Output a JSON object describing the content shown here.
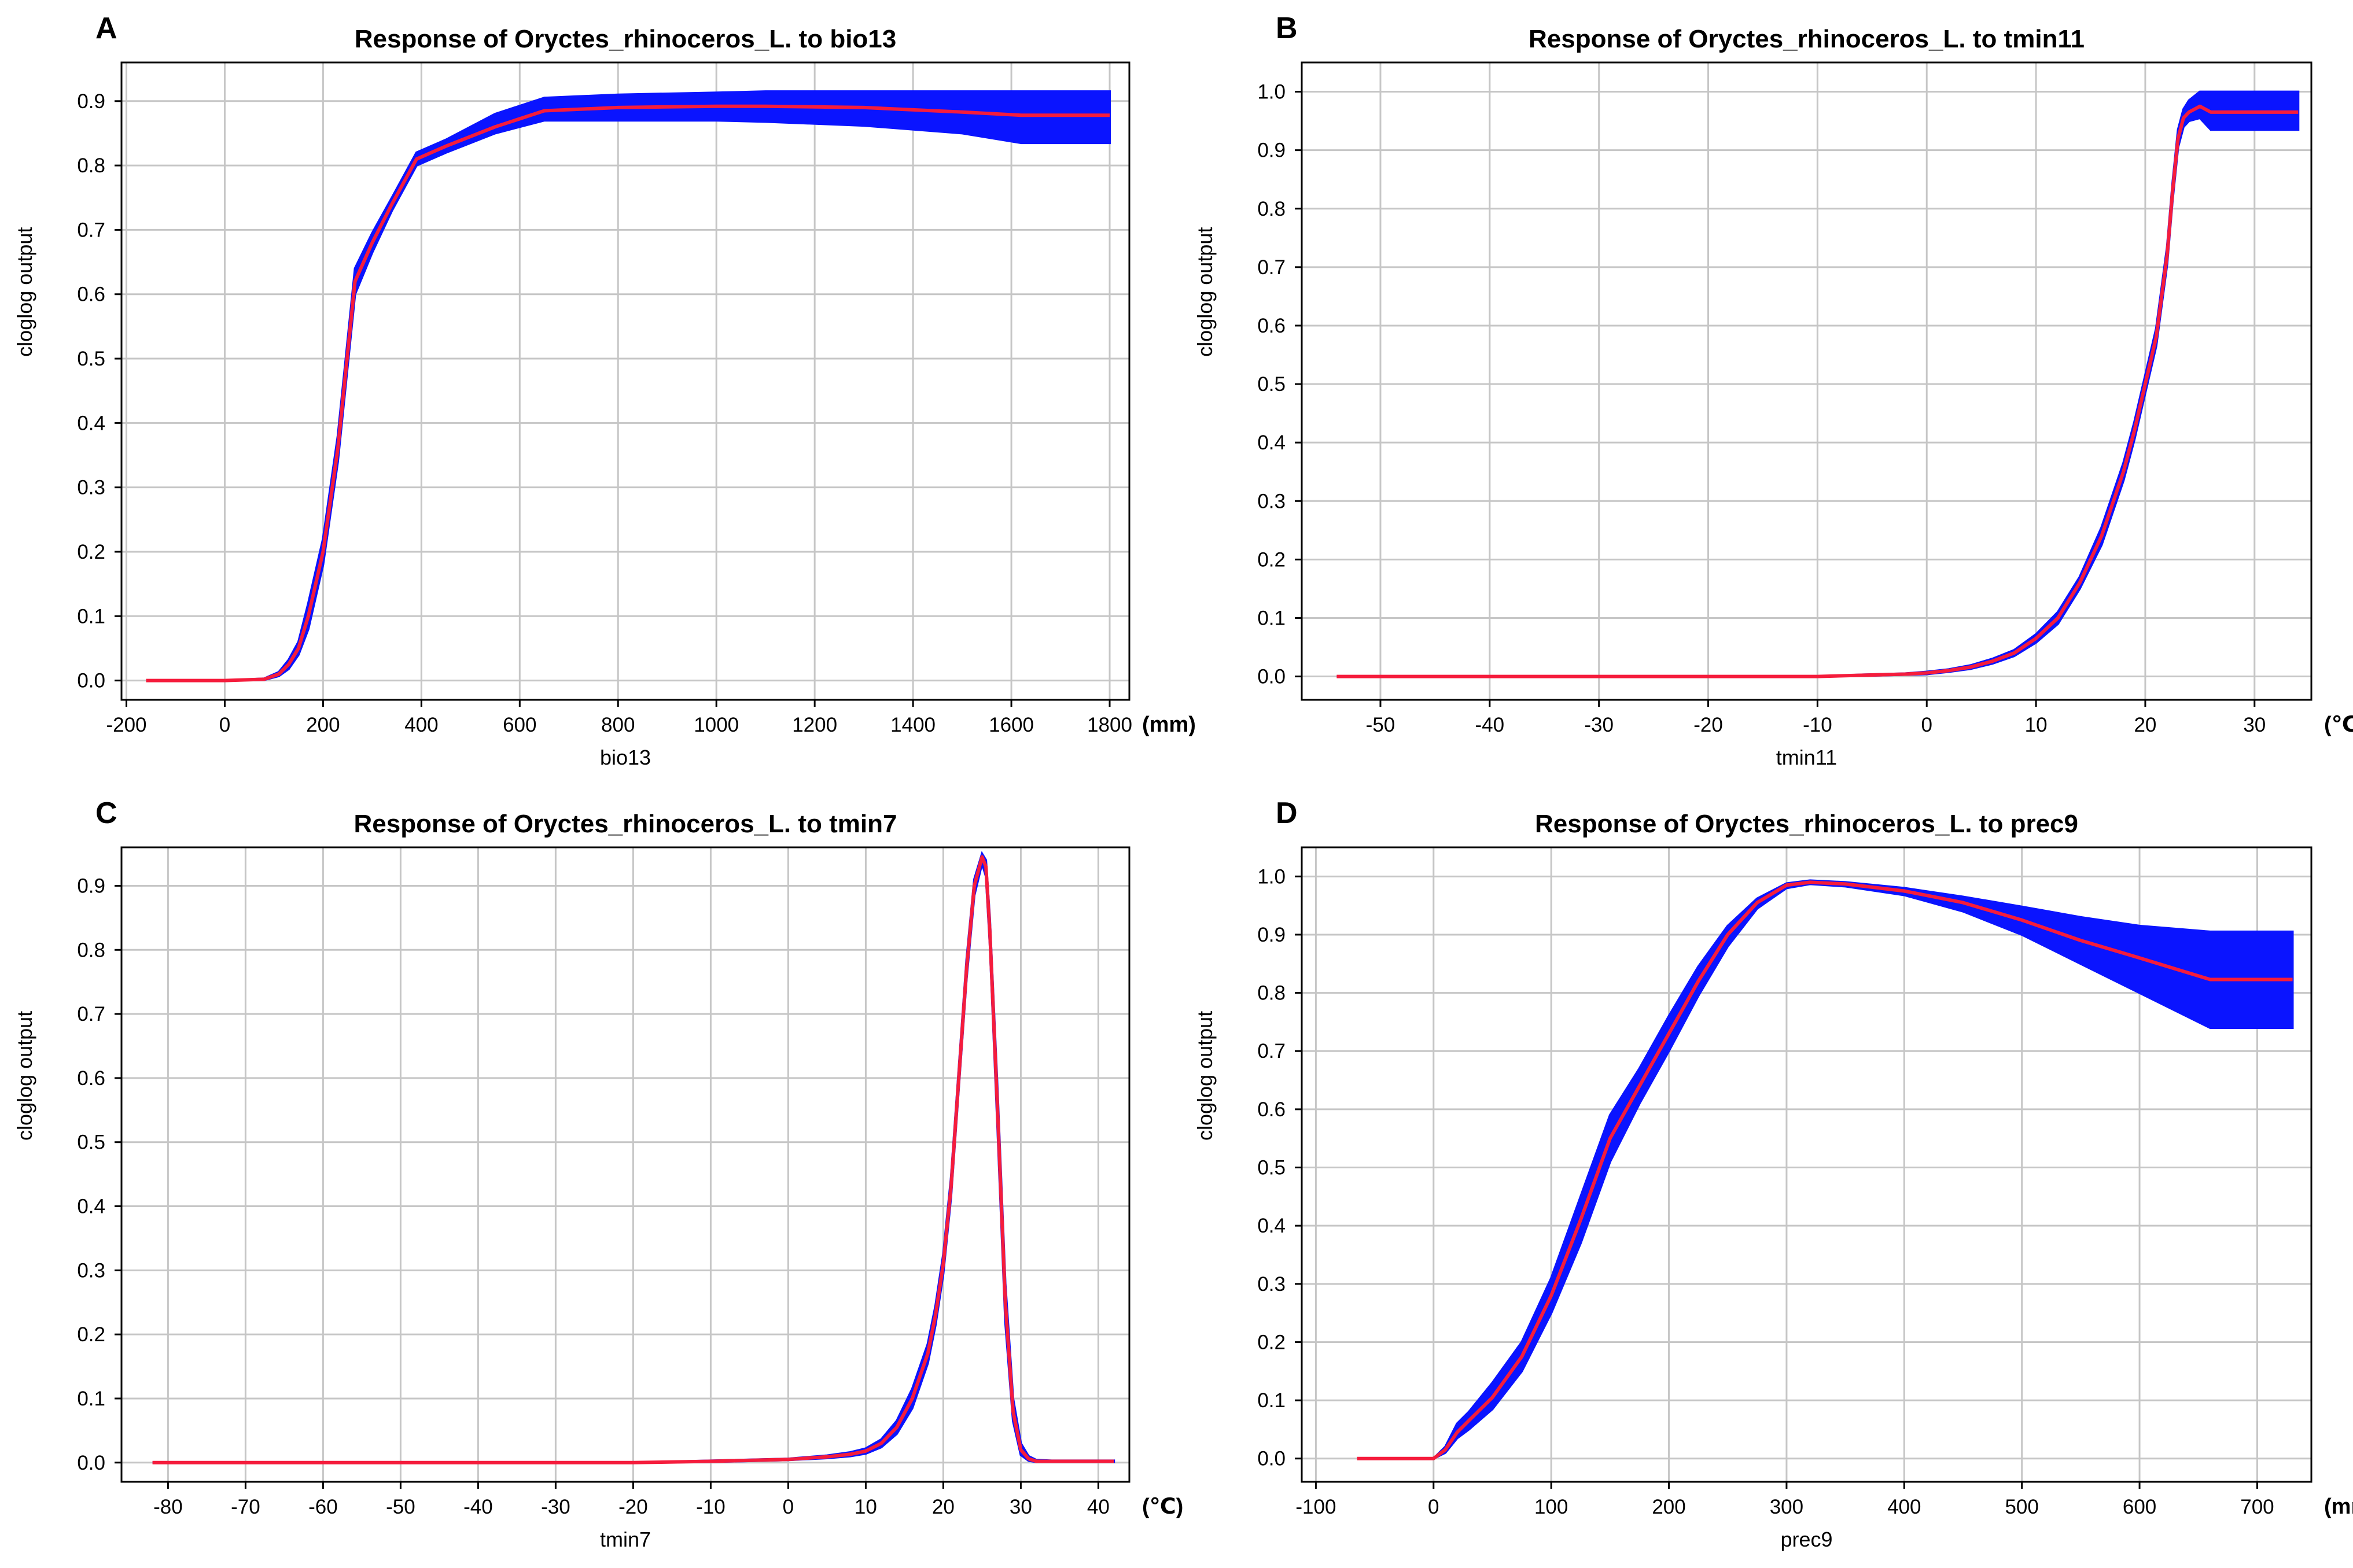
{
  "colors": {
    "band": "#0a14ff",
    "mean": "#f51c3c",
    "grid": "#c6c6c6"
  },
  "chart_data": [
    {
      "type": "area",
      "panel": "A",
      "title": "Response of Oryctes_rhinoceros_L. to bio13",
      "xlabel": "bio13",
      "ylabel": "cloglog output",
      "unit": "(mm)",
      "xlim": [
        -210,
        1840
      ],
      "ylim": [
        -0.03,
        0.96
      ],
      "xticks": [
        -200,
        0,
        200,
        400,
        600,
        800,
        1000,
        1200,
        1400,
        1600,
        1800
      ],
      "yticks": [
        0.0,
        0.1,
        0.2,
        0.3,
        0.4,
        0.5,
        0.6,
        0.7,
        0.8,
        0.9
      ],
      "ytick_decimals": 1,
      "series": [
        {
          "name": "mean",
          "x": [
            -160,
            0,
            80,
            110,
            130,
            150,
            170,
            200,
            230,
            265,
            300,
            340,
            390,
            450,
            550,
            650,
            800,
            1000,
            1100,
            1300,
            1500,
            1620,
            1800
          ],
          "values": [
            0.0,
            0.0,
            0.002,
            0.01,
            0.025,
            0.05,
            0.1,
            0.2,
            0.36,
            0.62,
            0.68,
            0.74,
            0.81,
            0.83,
            0.86,
            0.885,
            0.89,
            0.892,
            0.892,
            0.89,
            0.883,
            0.878,
            0.878
          ]
        },
        {
          "name": "upper",
          "x": [
            -160,
            0,
            80,
            110,
            130,
            150,
            170,
            200,
            230,
            265,
            300,
            340,
            390,
            450,
            550,
            650,
            800,
            1000,
            1100,
            1300,
            1500,
            1620,
            1800
          ],
          "values": [
            0.0,
            0.0,
            0.003,
            0.013,
            0.032,
            0.06,
            0.12,
            0.22,
            0.38,
            0.64,
            0.695,
            0.75,
            0.82,
            0.84,
            0.88,
            0.905,
            0.91,
            0.913,
            0.915,
            0.915,
            0.915,
            0.915,
            0.915
          ]
        },
        {
          "name": "lower",
          "x": [
            -160,
            0,
            80,
            110,
            130,
            150,
            170,
            200,
            230,
            265,
            300,
            340,
            390,
            450,
            550,
            650,
            800,
            1000,
            1100,
            1300,
            1500,
            1620,
            1800
          ],
          "values": [
            0.0,
            0.0,
            0.001,
            0.007,
            0.018,
            0.04,
            0.08,
            0.18,
            0.34,
            0.6,
            0.665,
            0.73,
            0.8,
            0.82,
            0.85,
            0.87,
            0.87,
            0.87,
            0.868,
            0.862,
            0.85,
            0.835,
            0.835
          ]
        }
      ]
    },
    {
      "type": "area",
      "panel": "B",
      "title": "Response of Oryctes_rhinoceros_L. to tmin11",
      "xlabel": "tmin11",
      "ylabel": "cloglog output",
      "unit": "(℃)",
      "xlim": [
        -57.2,
        35.2
      ],
      "ylim": [
        -0.04,
        1.05
      ],
      "xticks": [
        -50,
        -40,
        -30,
        -20,
        -10,
        0,
        10,
        20,
        30
      ],
      "yticks": [
        0.0,
        0.1,
        0.2,
        0.3,
        0.4,
        0.5,
        0.6,
        0.7,
        0.8,
        0.9,
        1.0
      ],
      "ytick_decimals": 1,
      "series": [
        {
          "name": "mean",
          "x": [
            -54,
            -10,
            -6,
            -2,
            0,
            2,
            4,
            6,
            8,
            10,
            12,
            14,
            16,
            18,
            19,
            20,
            21,
            22,
            22.5,
            23,
            23.5,
            24,
            25,
            26,
            34
          ],
          "values": [
            0.0,
            0.0,
            0.002,
            0.004,
            0.006,
            0.01,
            0.016,
            0.026,
            0.04,
            0.065,
            0.1,
            0.16,
            0.24,
            0.35,
            0.42,
            0.5,
            0.58,
            0.72,
            0.83,
            0.92,
            0.955,
            0.965,
            0.975,
            0.965,
            0.965
          ]
        },
        {
          "name": "upper",
          "x": [
            -54,
            -10,
            -6,
            -2,
            0,
            2,
            4,
            6,
            8,
            10,
            12,
            14,
            16,
            18,
            19,
            20,
            21,
            22,
            22.5,
            23,
            23.5,
            24,
            25,
            26,
            34
          ],
          "values": [
            0.0,
            0.0,
            0.003,
            0.005,
            0.008,
            0.012,
            0.019,
            0.03,
            0.045,
            0.072,
            0.11,
            0.17,
            0.255,
            0.365,
            0.435,
            0.515,
            0.595,
            0.735,
            0.845,
            0.935,
            0.97,
            0.985,
            1.0,
            1.0,
            1.0
          ]
        },
        {
          "name": "lower",
          "x": [
            -54,
            -10,
            -6,
            -2,
            0,
            2,
            4,
            6,
            8,
            10,
            12,
            14,
            16,
            18,
            19,
            20,
            21,
            22,
            22.5,
            23,
            23.5,
            24,
            25,
            26,
            34
          ],
          "values": [
            0.0,
            0.0,
            0.001,
            0.003,
            0.004,
            0.008,
            0.013,
            0.022,
            0.035,
            0.058,
            0.09,
            0.15,
            0.225,
            0.335,
            0.405,
            0.485,
            0.565,
            0.705,
            0.815,
            0.905,
            0.94,
            0.95,
            0.955,
            0.935,
            0.935
          ]
        }
      ]
    },
    {
      "type": "area",
      "panel": "C",
      "title": "Response of Oryctes_rhinoceros_L. to tmin7",
      "xlabel": "tmin7",
      "ylabel": "cloglog output",
      "unit": "(℃)",
      "xlim": [
        -86,
        44
      ],
      "ylim": [
        -0.03,
        0.96
      ],
      "xticks": [
        -80,
        -70,
        -60,
        -50,
        -40,
        -30,
        -20,
        -10,
        0,
        10,
        20,
        30,
        40
      ],
      "yticks": [
        0.0,
        0.1,
        0.2,
        0.3,
        0.4,
        0.5,
        0.6,
        0.7,
        0.8,
        0.9
      ],
      "ytick_decimals": 1,
      "series": [
        {
          "name": "mean",
          "x": [
            -82,
            -20,
            -10,
            0,
            5,
            8,
            10,
            12,
            14,
            16,
            18,
            19,
            20,
            21,
            22,
            23,
            24,
            25,
            25.5,
            26,
            27,
            28,
            29,
            30,
            31,
            32,
            34,
            42
          ],
          "values": [
            0.0,
            0.0,
            0.002,
            0.005,
            0.009,
            0.013,
            0.018,
            0.03,
            0.055,
            0.1,
            0.17,
            0.23,
            0.31,
            0.43,
            0.6,
            0.77,
            0.9,
            0.945,
            0.93,
            0.83,
            0.55,
            0.25,
            0.08,
            0.02,
            0.006,
            0.002,
            0.002,
            0.002
          ]
        },
        {
          "name": "upper",
          "x": [
            -82,
            -20,
            -10,
            0,
            5,
            8,
            10,
            12,
            14,
            16,
            18,
            19,
            20,
            21,
            22,
            23,
            24,
            25,
            25.5,
            26,
            27,
            28,
            29,
            30,
            31,
            32,
            34,
            42
          ],
          "values": [
            0.0,
            0.0,
            0.003,
            0.006,
            0.011,
            0.016,
            0.022,
            0.036,
            0.065,
            0.115,
            0.185,
            0.245,
            0.325,
            0.445,
            0.615,
            0.785,
            0.91,
            0.95,
            0.94,
            0.85,
            0.58,
            0.28,
            0.1,
            0.03,
            0.01,
            0.004,
            0.003,
            0.003
          ]
        },
        {
          "name": "lower",
          "x": [
            -82,
            -20,
            -10,
            0,
            5,
            8,
            10,
            12,
            14,
            16,
            18,
            19,
            20,
            21,
            22,
            23,
            24,
            25,
            25.5,
            26,
            27,
            28,
            29,
            30,
            31,
            32,
            34,
            42
          ],
          "values": [
            0.0,
            0.0,
            0.001,
            0.004,
            0.007,
            0.01,
            0.014,
            0.024,
            0.045,
            0.085,
            0.155,
            0.215,
            0.295,
            0.415,
            0.585,
            0.755,
            0.885,
            0.935,
            0.915,
            0.81,
            0.52,
            0.22,
            0.065,
            0.012,
            0.003,
            0.001,
            0.001,
            0.001
          ]
        }
      ]
    },
    {
      "type": "area",
      "panel": "D",
      "title": "Response of Oryctes_rhinoceros_L. to prec9",
      "xlabel": "prec9",
      "ylabel": "cloglog output",
      "unit": "(mm)",
      "xlim": [
        -112,
        746
      ],
      "ylim": [
        -0.04,
        1.05
      ],
      "xticks": [
        -100,
        0,
        100,
        200,
        300,
        400,
        500,
        600,
        700
      ],
      "yticks": [
        0.0,
        0.1,
        0.2,
        0.3,
        0.4,
        0.5,
        0.6,
        0.7,
        0.8,
        0.9,
        1.0
      ],
      "ytick_decimals": 1,
      "series": [
        {
          "name": "mean",
          "x": [
            -65,
            0,
            10,
            20,
            30,
            50,
            75,
            100,
            125,
            150,
            175,
            200,
            225,
            250,
            275,
            300,
            320,
            350,
            400,
            450,
            500,
            550,
            600,
            660,
            730
          ],
          "values": [
            0.0,
            0.0,
            0.015,
            0.045,
            0.065,
            0.105,
            0.175,
            0.28,
            0.41,
            0.55,
            0.64,
            0.73,
            0.82,
            0.9,
            0.955,
            0.985,
            0.99,
            0.987,
            0.975,
            0.955,
            0.925,
            0.89,
            0.86,
            0.823,
            0.823
          ]
        },
        {
          "name": "upper",
          "x": [
            -65,
            0,
            10,
            20,
            30,
            50,
            75,
            100,
            125,
            150,
            175,
            200,
            225,
            250,
            275,
            300,
            320,
            350,
            400,
            450,
            500,
            550,
            600,
            660,
            730
          ],
          "values": [
            0.0,
            0.0,
            0.02,
            0.06,
            0.08,
            0.13,
            0.2,
            0.31,
            0.45,
            0.59,
            0.67,
            0.76,
            0.845,
            0.915,
            0.962,
            0.988,
            0.993,
            0.99,
            0.98,
            0.965,
            0.948,
            0.93,
            0.915,
            0.905,
            0.905
          ]
        },
        {
          "name": "lower",
          "x": [
            -65,
            0,
            10,
            20,
            30,
            50,
            75,
            100,
            125,
            150,
            175,
            200,
            225,
            250,
            275,
            300,
            320,
            350,
            400,
            450,
            500,
            550,
            600,
            660,
            730
          ],
          "values": [
            0.0,
            0.0,
            0.01,
            0.035,
            0.05,
            0.085,
            0.15,
            0.25,
            0.37,
            0.51,
            0.61,
            0.7,
            0.795,
            0.88,
            0.945,
            0.98,
            0.987,
            0.983,
            0.968,
            0.94,
            0.9,
            0.85,
            0.8,
            0.74,
            0.74
          ]
        }
      ]
    }
  ]
}
